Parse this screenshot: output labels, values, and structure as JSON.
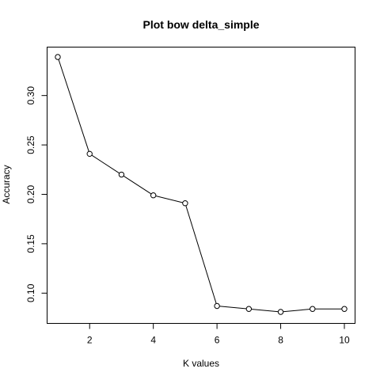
{
  "chart_data": {
    "type": "line",
    "title": "Plot bow delta_simple",
    "xlabel": "K values",
    "ylabel": "Accuracy",
    "x": [
      1,
      2,
      3,
      4,
      5,
      6,
      7,
      8,
      9,
      10
    ],
    "series": [
      {
        "values": [
          0.339,
          0.241,
          0.22,
          0.199,
          0.191,
          0.087,
          0.084,
          0.081,
          0.084,
          0.084
        ],
        "color": "#000000",
        "marker": "open-circle"
      }
    ],
    "xlim": [
      1,
      10
    ],
    "ylim": [
      0.081,
      0.339
    ],
    "xticks": [
      2,
      4,
      6,
      8,
      10
    ],
    "yticks": [
      0.1,
      0.15,
      0.2,
      0.25,
      0.3
    ],
    "ytick_labels": [
      "0.10",
      "0.15",
      "0.20",
      "0.25",
      "0.30"
    ],
    "grid": false,
    "legend": "none"
  }
}
